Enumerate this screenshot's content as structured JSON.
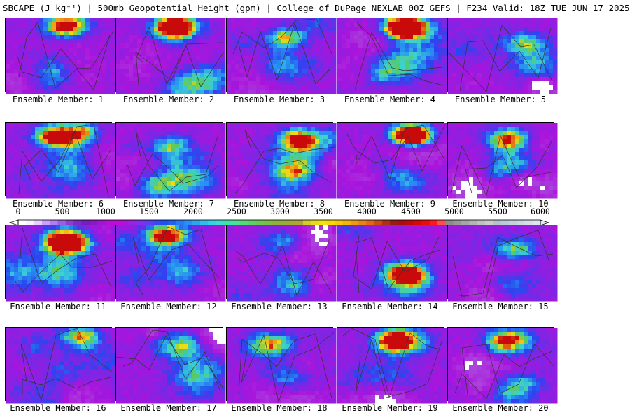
{
  "title": "SBCAPE (J kg⁻¹) | 500mb Geopotential Height (gpm) | College of DuPage NEXLAB 00Z GEFS | F234 Valid: 18Z TUE JUN 17 2025",
  "colorbar": {
    "ticks": [
      "0",
      "500",
      "1000",
      "1500",
      "2000",
      "2500",
      "3000",
      "3500",
      "4000",
      "4500",
      "5000",
      "5500",
      "6000"
    ],
    "colors": [
      "#ffffff",
      "#f8f0ff",
      "#e6d2ff",
      "#cc9fff",
      "#b27ef2",
      "#9a5ee0",
      "#8a3fd1",
      "#7c2bc4",
      "#7220bb",
      "#8a18c4",
      "#a015cf",
      "#b80fd6",
      "#c20bd8",
      "#ad14dc",
      "#9a22e4",
      "#8030ec",
      "#5b3ff0",
      "#3a48f2",
      "#1e4ff0",
      "#1f63f0",
      "#2879f2",
      "#2c8ff2",
      "#2ea6ef",
      "#34bcec",
      "#38d0e6",
      "#3fdcce",
      "#44dfb0",
      "#4be096",
      "#55d97d",
      "#60cf68",
      "#6dc558",
      "#7dbc4a",
      "#8bb23f",
      "#98ad3c",
      "#a3a83a",
      "#b0a338",
      "#d4cc2a",
      "#e6da1a",
      "#f2e20e",
      "#f7d90a",
      "#f8c80a",
      "#f5b40c",
      "#ee9a10",
      "#e68314",
      "#dd6a18",
      "#c94c18",
      "#b03016",
      "#961c14",
      "#aa0f0f",
      "#c00a0a",
      "#d80808",
      "#ee0a0a",
      "#ff1a1a",
      "#ff4d4d",
      "#8c8c8c",
      "#999999",
      "#a6a6a6",
      "#b3b3b3",
      "#c0c0c0",
      "#cccccc",
      "#b4c3d2",
      "#bccad8",
      "#c4d1de",
      "#ccd8e4",
      "#d4dfea",
      "#dce6f0"
    ]
  },
  "members": [
    {
      "label": "Ensemble Member: 1"
    },
    {
      "label": "Ensemble Member: 2"
    },
    {
      "label": "Ensemble Member: 3"
    },
    {
      "label": "Ensemble Member: 4"
    },
    {
      "label": "Ensemble Member: 5"
    },
    {
      "label": "Ensemble Member: 6"
    },
    {
      "label": "Ensemble Member: 7"
    },
    {
      "label": "Ensemble Member: 8"
    },
    {
      "label": "Ensemble Member: 9"
    },
    {
      "label": "Ensemble Member: 10"
    },
    {
      "label": "Ensemble Member: 11"
    },
    {
      "label": "Ensemble Member: 12"
    },
    {
      "label": "Ensemble Member: 13"
    },
    {
      "label": "Ensemble Member: 14"
    },
    {
      "label": "Ensemble Member: 15"
    },
    {
      "label": "Ensemble Member: 16"
    },
    {
      "label": "Ensemble Member: 17"
    },
    {
      "label": "Ensemble Member: 18"
    },
    {
      "label": "Ensemble Member: 19"
    },
    {
      "label": "Ensemble Member: 20"
    }
  ]
}
